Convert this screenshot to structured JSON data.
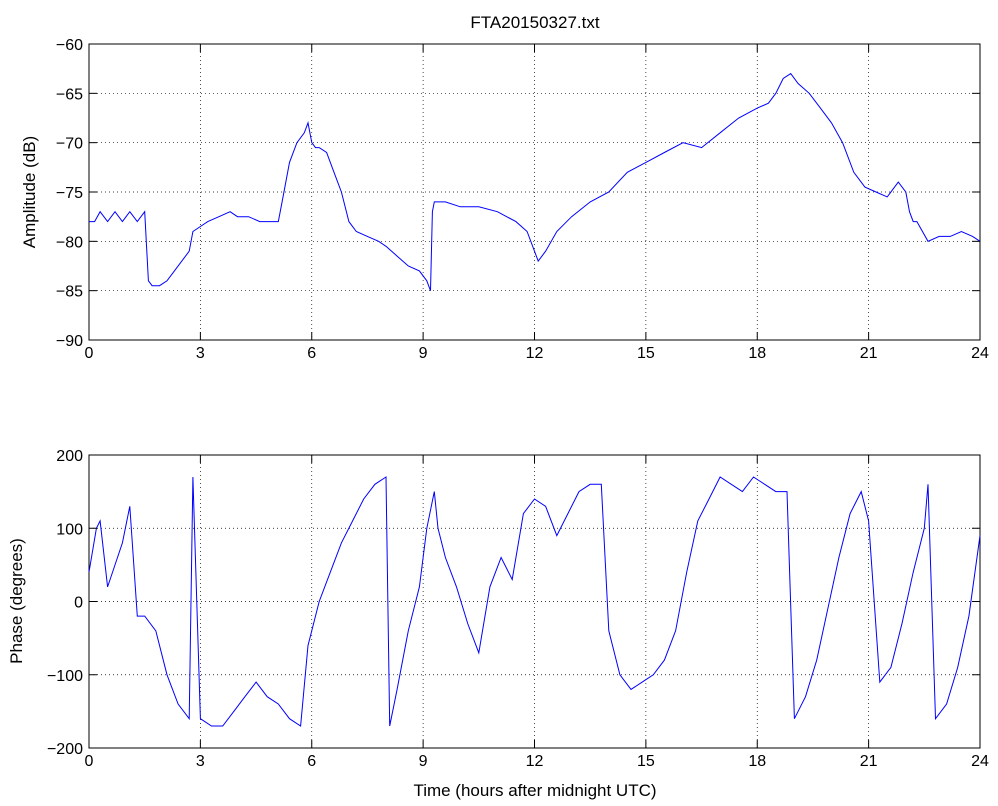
{
  "figure": {
    "title": "FTA20150327.txt",
    "xlabel": "Time (hours after midnight UTC)"
  },
  "chart_data": [
    {
      "type": "line",
      "title": "FTA20150327.txt",
      "xlabel": "",
      "ylabel": "Amplitude (dB)",
      "xlim": [
        0,
        24
      ],
      "ylim": [
        -90,
        -60
      ],
      "xticks": [
        0,
        3,
        6,
        9,
        12,
        15,
        18,
        21,
        24
      ],
      "yticks": [
        -90,
        -85,
        -80,
        -75,
        -70,
        -65,
        -60
      ],
      "grid": true,
      "color": "#0000ff",
      "series": [
        {
          "x": [
            0,
            0.15,
            0.3,
            0.5,
            0.7,
            0.9,
            1.1,
            1.3,
            1.5,
            1.6,
            1.7,
            1.9,
            2.1,
            2.3,
            2.5,
            2.7,
            2.8,
            3.0,
            3.2,
            3.5,
            3.8,
            4.0,
            4.3,
            4.6,
            4.9,
            5.1,
            5.2,
            5.4,
            5.6,
            5.8,
            5.9,
            6.0,
            6.1,
            6.2,
            6.4,
            6.6,
            6.8,
            7.0,
            7.2,
            7.5,
            7.8,
            8.0,
            8.3,
            8.6,
            8.9,
            9.1,
            9.2,
            9.25,
            9.3,
            9.6,
            10.0,
            10.5,
            11.0,
            11.5,
            11.8,
            12.0,
            12.1,
            12.3,
            12.6,
            13.0,
            13.5,
            14.0,
            14.5,
            15.0,
            15.5,
            16.0,
            16.5,
            17.0,
            17.5,
            18.0,
            18.3,
            18.5,
            18.7,
            18.9,
            19.1,
            19.4,
            19.7,
            20.0,
            20.3,
            20.6,
            20.9,
            21.2,
            21.5,
            21.8,
            22.0,
            22.1,
            22.2,
            22.3,
            22.6,
            22.9,
            23.2,
            23.5,
            23.8,
            24.0
          ],
          "y": [
            -78,
            -78,
            -77,
            -78,
            -77,
            -78,
            -77,
            -78,
            -77,
            -84,
            -84.5,
            -84.5,
            -84,
            -83,
            -82,
            -81,
            -79,
            -78.5,
            -78,
            -77.5,
            -77,
            -77.5,
            -77.5,
            -78,
            -78,
            -78,
            -76,
            -72,
            -70,
            -69,
            -68,
            -70,
            -70.5,
            -70.5,
            -71,
            -73,
            -75,
            -78,
            -79,
            -79.5,
            -80,
            -80.5,
            -81.5,
            -82.5,
            -83,
            -84,
            -85,
            -77,
            -76,
            -76,
            -76.5,
            -76.5,
            -77,
            -78,
            -79,
            -81,
            -82,
            -81,
            -79,
            -77.5,
            -76,
            -75,
            -73,
            -72,
            -71,
            -70,
            -70.5,
            -69,
            -67.5,
            -66.5,
            -66,
            -65,
            -63.5,
            -63,
            -64,
            -65,
            -66.5,
            -68,
            -70,
            -73,
            -74.5,
            -75,
            -75.5,
            -74,
            -75,
            -77,
            -78,
            -78,
            -80,
            -79.5,
            -79.5,
            -79,
            -79.5,
            -80
          ]
        }
      ]
    },
    {
      "type": "line",
      "title": "",
      "xlabel": "Time (hours after midnight UTC)",
      "ylabel": "Phase (degrees)",
      "xlim": [
        0,
        24
      ],
      "ylim": [
        -200,
        200
      ],
      "xticks": [
        0,
        3,
        6,
        9,
        12,
        15,
        18,
        21,
        24
      ],
      "yticks": [
        -200,
        -100,
        0,
        100,
        200
      ],
      "grid": true,
      "color": "#0000ff",
      "series": [
        {
          "x": [
            0,
            0.2,
            0.3,
            0.5,
            0.7,
            0.9,
            1.1,
            1.3,
            1.5,
            1.8,
            2.1,
            2.4,
            2.7,
            2.8,
            3.0,
            3.3,
            3.6,
            3.9,
            4.2,
            4.5,
            4.8,
            5.1,
            5.4,
            5.7,
            5.9,
            6.2,
            6.5,
            6.8,
            7.1,
            7.4,
            7.7,
            8.0,
            8.1,
            8.3,
            8.6,
            8.9,
            9.1,
            9.3,
            9.4,
            9.6,
            9.9,
            10.2,
            10.5,
            10.8,
            11.1,
            11.4,
            11.7,
            12.0,
            12.3,
            12.6,
            12.9,
            13.2,
            13.5,
            13.8,
            14.0,
            14.3,
            14.6,
            14.9,
            15.2,
            15.5,
            15.8,
            16.1,
            16.4,
            16.7,
            17.0,
            17.3,
            17.6,
            17.9,
            18.2,
            18.5,
            18.8,
            19.0,
            19.3,
            19.6,
            19.9,
            20.2,
            20.5,
            20.8,
            21.0,
            21.3,
            21.6,
            21.9,
            22.2,
            22.5,
            22.6,
            22.8,
            23.1,
            23.4,
            23.7,
            24.0
          ],
          "y": [
            40,
            100,
            110,
            20,
            50,
            80,
            130,
            -20,
            -20,
            -40,
            -100,
            -140,
            -160,
            170,
            -160,
            -170,
            -170,
            -150,
            -130,
            -110,
            -130,
            -140,
            -160,
            -170,
            -60,
            0,
            40,
            80,
            110,
            140,
            160,
            170,
            -170,
            -120,
            -40,
            20,
            100,
            150,
            100,
            60,
            20,
            -30,
            -70,
            20,
            60,
            30,
            120,
            140,
            130,
            90,
            120,
            150,
            160,
            160,
            -40,
            -100,
            -120,
            -110,
            -100,
            -80,
            -40,
            40,
            110,
            140,
            170,
            160,
            150,
            170,
            160,
            150,
            150,
            -160,
            -130,
            -80,
            -10,
            60,
            120,
            150,
            110,
            -110,
            -90,
            -30,
            40,
            100,
            160,
            -160,
            -140,
            -90,
            -20,
            90
          ]
        }
      ]
    }
  ]
}
